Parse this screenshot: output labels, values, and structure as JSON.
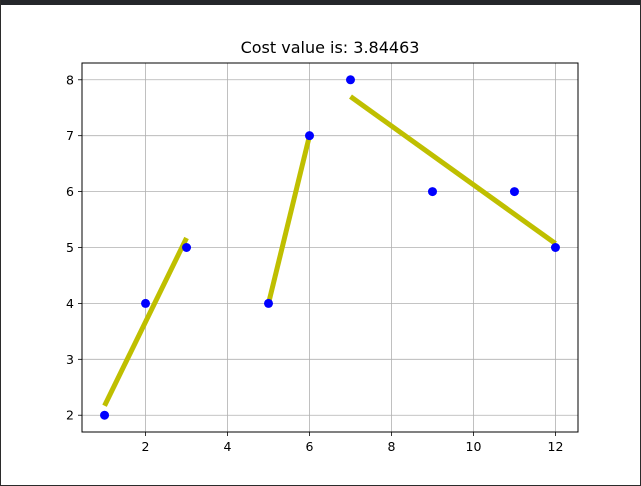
{
  "chart_data": {
    "type": "scatter",
    "title": "Cost value is: 3.84463",
    "xlabel": "",
    "ylabel": "",
    "xlim": [
      0.45,
      12.55
    ],
    "ylim": [
      1.7,
      8.3
    ],
    "xticks": [
      2,
      4,
      6,
      8,
      10,
      12
    ],
    "yticks": [
      2,
      3,
      4,
      5,
      6,
      7,
      8
    ],
    "xtick_labels": [
      "2",
      "4",
      "6",
      "8",
      "10",
      "12"
    ],
    "ytick_labels": [
      "2",
      "3",
      "4",
      "5",
      "6",
      "7",
      "8"
    ],
    "grid": true,
    "points": {
      "color": "#0000ff",
      "x": [
        1,
        2,
        3,
        5,
        6,
        7,
        9,
        11,
        12
      ],
      "y": [
        2,
        4,
        5,
        4,
        7,
        8,
        6,
        6,
        5
      ]
    },
    "fit_segments": {
      "color": "#bfbf00",
      "lines": [
        {
          "x": [
            1,
            3
          ],
          "y": [
            2.17,
            5.17
          ]
        },
        {
          "x": [
            5,
            6
          ],
          "y": [
            4.0,
            7.0
          ]
        },
        {
          "x": [
            7,
            12
          ],
          "y": [
            7.7,
            5.07
          ]
        }
      ]
    }
  }
}
